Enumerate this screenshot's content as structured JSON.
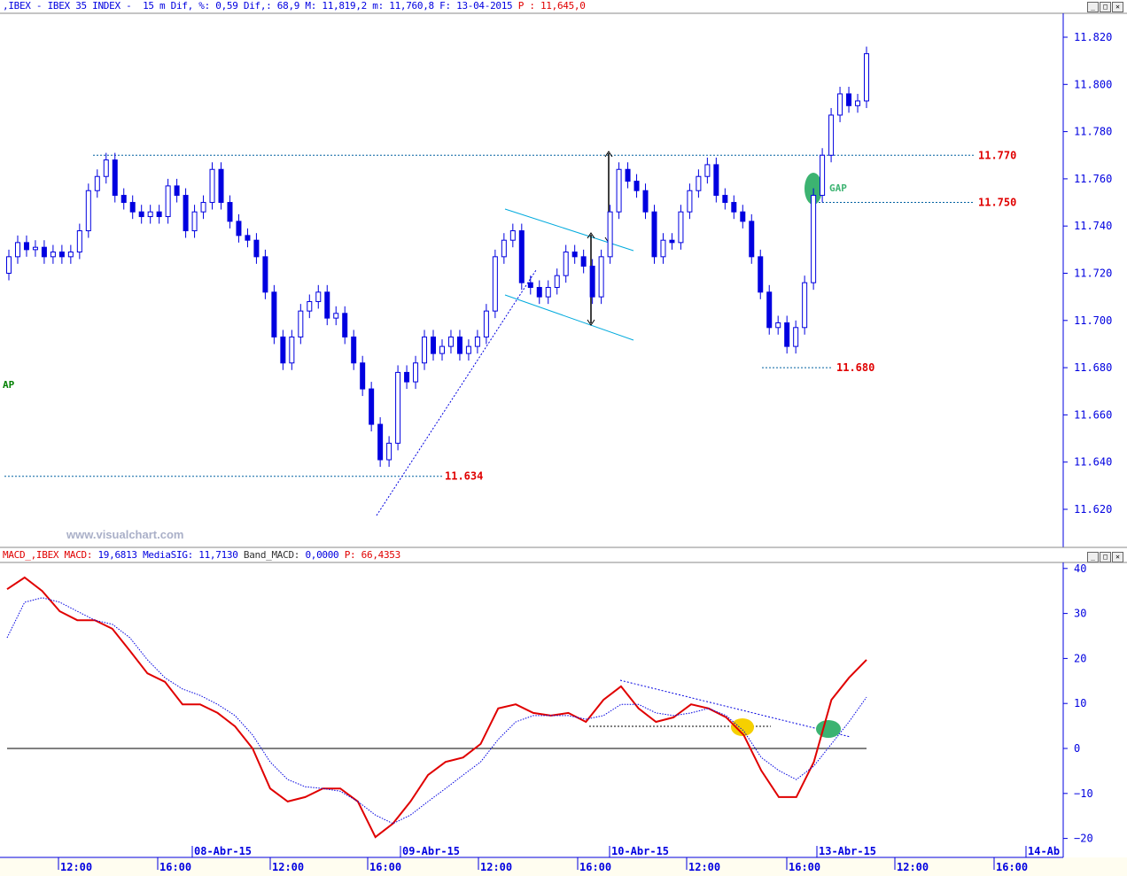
{
  "header": {
    "main_title": ",IBEX - IBEX 35 INDEX -  15 m Dif, %: 0,59 Dif,: 68,9 M: 11,819,2 m: 11,760,8 F: 13-04-2015 ",
    "main_price": "P : 11,645,0",
    "macd_name": "MACD_,IBEX MACD: ",
    "macd_value": "19,6813 MediaSIG: 11,7130 ",
    "band_label": "Band_MACD: ",
    "band_value": "0,0000 ",
    "macd_p": "P: 66,4353"
  },
  "window_buttons": [
    "minimize-icon",
    "restore-icon",
    "close-icon"
  ],
  "watermark": "www.visualchart.com",
  "colors": {
    "candle": "#0000e0",
    "macd": "#e00000",
    "signal": "#0000e0",
    "level": "#e00000",
    "gap": "#3cb371",
    "cross": "#f5d000",
    "axis": "#0000e0"
  },
  "chart_data": [
    {
      "type": "candlestick",
      "title": "IBEX 35 INDEX 15 m",
      "ylim": [
        11610,
        11830
      ],
      "yticks": [
        "11.820",
        "11.800",
        "11.780",
        "11.760",
        "11.740",
        "11.720",
        "11.700",
        "11.680",
        "11.660",
        "11.640",
        "11.620"
      ],
      "ytick_values": [
        11820,
        11800,
        11780,
        11760,
        11740,
        11720,
        11700,
        11680,
        11660,
        11640,
        11620
      ],
      "first_open": 11720,
      "close": [
        11727,
        11733,
        11730,
        11731,
        11727,
        11729,
        11727,
        11729,
        11738,
        11755,
        11761,
        11768,
        11753,
        11750,
        11746,
        11744,
        11746,
        11744,
        11757,
        11753,
        11738,
        11746,
        11750,
        11764,
        11750,
        11742,
        11736,
        11734,
        11727,
        11712,
        11693,
        11682,
        11693,
        11704,
        11708,
        11712,
        11701,
        11703,
        11693,
        11682,
        11671,
        11656,
        11641,
        11648,
        11678,
        11674,
        11682,
        11693,
        11686,
        11689,
        11693,
        11686,
        11689,
        11693,
        11704,
        11727,
        11734,
        11738,
        11716,
        11714,
        11710,
        11714,
        11719,
        11729,
        11727,
        11723,
        11710,
        11727,
        11746,
        11764,
        11759,
        11755,
        11746,
        11727,
        11734,
        11733,
        11746,
        11755,
        11761,
        11766,
        11753,
        11750,
        11746,
        11742,
        11727,
        11712,
        11697,
        11699,
        11689,
        11697,
        11716,
        11753,
        11770,
        11787,
        11796,
        11791,
        11793,
        11813
      ],
      "levels": [
        {
          "value": 11770,
          "label": "11.770"
        },
        {
          "value": 11750,
          "label": "11.750"
        },
        {
          "value": 11680,
          "label": "11.680"
        },
        {
          "value": 11634,
          "label": "11.634"
        }
      ],
      "annotations": {
        "gap_label": "GAP",
        "gap_label_left": "AP"
      }
    },
    {
      "type": "line",
      "title": "MACD",
      "ylim": [
        -22,
        42
      ],
      "yticks": [
        "40",
        "30",
        "20",
        "10",
        "0",
        "−10",
        "−20"
      ],
      "ytick_values": [
        40,
        30,
        20,
        10,
        0,
        -10,
        -20
      ],
      "series": [
        {
          "name": "MACD",
          "values": [
            35.4,
            38,
            35,
            30.5,
            28.5,
            28.5,
            26.6,
            21.7,
            16.7,
            14.8,
            9.8,
            9.8,
            7.9,
            4.9,
            0,
            -8.9,
            -11.8,
            -10.8,
            -8.9,
            -8.9,
            -11.8,
            -19.7,
            -16.7,
            -11.8,
            -5.9,
            -3,
            -2,
            1,
            8.9,
            9.8,
            7.9,
            7.3,
            7.9,
            5.9,
            10.8,
            13.8,
            8.9,
            5.9,
            6.9,
            9.8,
            8.9,
            6.9,
            3,
            -4.9,
            -10.8,
            -10.8,
            -3,
            10.8,
            15.7,
            19.7
          ]
        },
        {
          "name": "MediaSIG",
          "values": [
            24.6,
            32.5,
            33.5,
            32.5,
            30.5,
            28.5,
            27.6,
            24.6,
            19.7,
            15.7,
            13.2,
            11.8,
            9.8,
            7.3,
            3,
            -3,
            -6.9,
            -8.5,
            -8.9,
            -9.5,
            -11.8,
            -14.8,
            -16.7,
            -14.8,
            -11.8,
            -8.9,
            -5.9,
            -3,
            2,
            5.9,
            7.3,
            7.3,
            7.3,
            6.5,
            7.3,
            9.8,
            9.8,
            7.9,
            7.3,
            7.9,
            8.9,
            7.3,
            3.9,
            -2,
            -4.9,
            -6.9,
            -3.9,
            1,
            5.9,
            11.4
          ]
        }
      ]
    }
  ],
  "xaxis": {
    "dates": [
      "08-Abr-15",
      "09-Abr-15",
      "10-Abr-15",
      "13-Abr-15",
      "14-Ab"
    ],
    "times": [
      "12:00",
      "16:00",
      "12:00",
      "16:00",
      "12:00",
      "16:00",
      "12:00",
      "16:00",
      "12:00",
      "16:00"
    ]
  }
}
